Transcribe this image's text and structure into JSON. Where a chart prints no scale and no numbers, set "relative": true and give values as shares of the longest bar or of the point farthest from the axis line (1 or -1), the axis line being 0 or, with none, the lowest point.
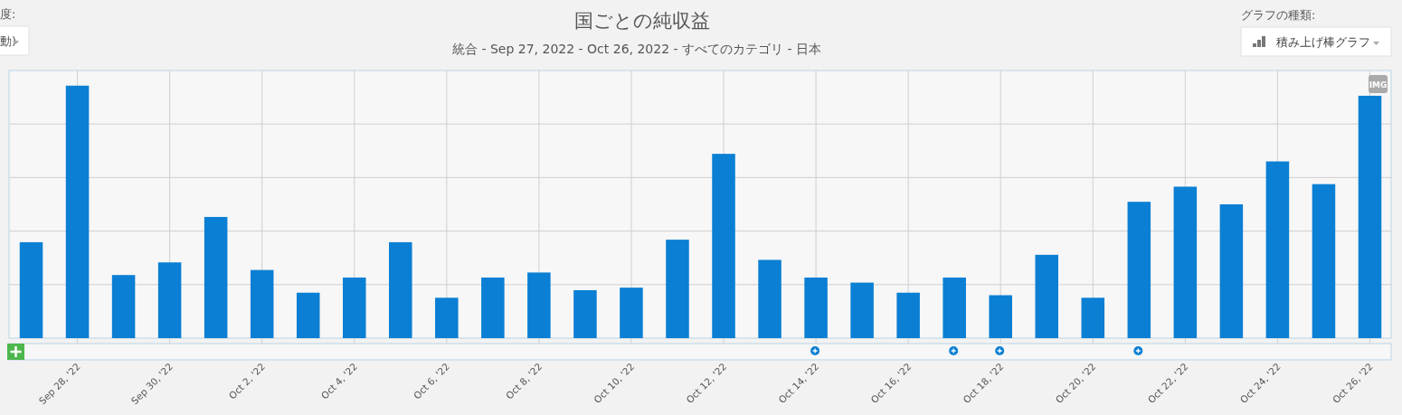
{
  "chart_data": {
    "type": "bar",
    "title": "国ごとの純収益",
    "subtitle": "統合 - Sep 27, 2022 - Oct 26, 2022 - すべてのカテゴリ - 日本",
    "categories": [
      null,
      "Sep 28, '22",
      null,
      "Sep 30, '22",
      null,
      "Oct 2, '22",
      null,
      "Oct 4, '22",
      null,
      "Oct 6, '22",
      null,
      "Oct 8, '22",
      null,
      "Oct 10, '22",
      null,
      "Oct 12, '22",
      null,
      "Oct 14, '22",
      null,
      "Oct 16, '22",
      null,
      "Oct 18, '22",
      null,
      "Oct 20, '22",
      null,
      "Oct 22, '22",
      null,
      "Oct 24, '22",
      null,
      "Oct 26, '22"
    ],
    "values": [
      0.38,
      1,
      0.25,
      0.3,
      0.48,
      0.27,
      0.18,
      0.24,
      0.38,
      0.16,
      0.24,
      0.26,
      0.19,
      0.2,
      0.39,
      0.73,
      0.31,
      0.24,
      0.22,
      0.18,
      0.24,
      0.17,
      0.33,
      0.16,
      0.54,
      0.6,
      0.53,
      0.7,
      0.61,
      0.96
    ],
    "color": "#0a7fd4",
    "relative": true,
    "grid": true,
    "annotations": [
      "度:",
      "動)",
      "グラフの種類:",
      "積み上げ棒グラフ",
      "IMG"
    ]
  }
}
